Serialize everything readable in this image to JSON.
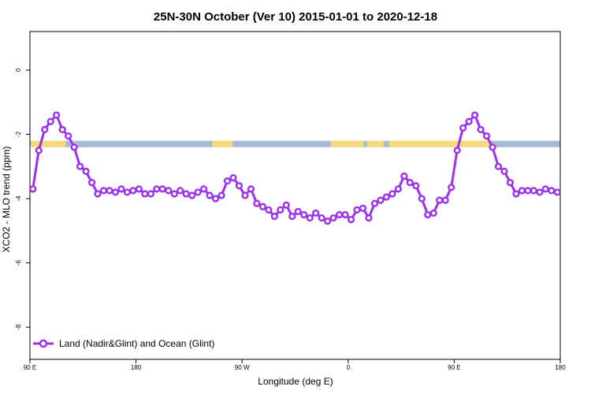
{
  "chart_data": {
    "type": "line",
    "title": "25N-30N October (Ver 10)   2015-01-01 to 2020-12-18",
    "xlabel": "Longitude (deg E)",
    "ylabel": "XCO2 - MLO trend (ppm)",
    "xlim": [
      90,
      540
    ],
    "ylim": [
      -9,
      1.2
    ],
    "x_ticks": [
      {
        "value": 90,
        "label": "90 E"
      },
      {
        "value": 180,
        "label": "180"
      },
      {
        "value": 270,
        "label": "90 W"
      },
      {
        "value": 360,
        "label": "0"
      },
      {
        "value": 450,
        "label": "90 E"
      },
      {
        "value": 540,
        "label": "180"
      }
    ],
    "y_ticks": [
      {
        "value": 0,
        "label": "0"
      },
      {
        "value": -2,
        "label": "-2"
      },
      {
        "value": -4,
        "label": "-4"
      },
      {
        "value": -6,
        "label": "-6"
      },
      {
        "value": -8,
        "label": "-8"
      }
    ],
    "grid": false,
    "legend_position": "bottom-left",
    "band": {
      "y_range": [
        -2.4,
        -2.2
      ],
      "land_color": "#f5d97a",
      "ocean_color": "#a4bcd8",
      "segments": [
        {
          "from": 90,
          "to": 120,
          "kind": "land"
        },
        {
          "from": 120,
          "to": 245,
          "kind": "ocean"
        },
        {
          "from": 245,
          "to": 262,
          "kind": "land"
        },
        {
          "from": 262,
          "to": 345,
          "kind": "ocean"
        },
        {
          "from": 345,
          "to": 373,
          "kind": "land"
        },
        {
          "from": 373,
          "to": 376,
          "kind": "ocean"
        },
        {
          "from": 376,
          "to": 390,
          "kind": "land"
        },
        {
          "from": 390,
          "to": 395,
          "kind": "ocean"
        },
        {
          "from": 395,
          "to": 480,
          "kind": "land"
        },
        {
          "from": 480,
          "to": 540,
          "kind": "ocean"
        }
      ]
    },
    "series": [
      {
        "name": "Land (Nadir&Glint) and Ocean (Glint)",
        "color": "#9b30f0",
        "x": [
          92.5,
          97.5,
          102.5,
          107.5,
          112.5,
          117.5,
          122.5,
          127.5,
          132.5,
          137.5,
          142.5,
          147.5,
          152.5,
          157.5,
          162.5,
          167.5,
          172.5,
          177.5,
          182.5,
          187.5,
          192.5,
          197.5,
          202.5,
          207.5,
          212.5,
          217.5,
          222.5,
          227.5,
          232.5,
          237.5,
          242.5,
          247.5,
          252.5,
          257.5,
          262.5,
          267.5,
          272.5,
          277.5,
          282.5,
          287.5,
          292.5,
          297.5,
          302.5,
          307.5,
          312.5,
          317.5,
          322.5,
          327.5,
          332.5,
          337.5,
          342.5,
          347.5,
          352.5,
          357.5,
          362.5,
          367.5,
          372.5,
          377.5,
          382.5,
          387.5,
          392.5,
          397.5,
          402.5,
          407.5,
          412.5,
          417.5,
          422.5,
          427.5,
          432.5,
          437.5,
          442.5,
          447.5,
          452.5,
          457.5,
          462.5,
          467.5,
          472.5,
          477.5,
          482.5,
          487.5,
          492.5,
          497.5,
          502.5,
          507.5,
          512.5,
          517.5,
          522.5,
          527.5,
          532.5,
          537.5
        ],
        "y": [
          -3.7,
          -2.5,
          -1.85,
          -1.6,
          -1.4,
          -1.85,
          -2.05,
          -2.4,
          -3.0,
          -3.15,
          -3.5,
          -3.85,
          -3.75,
          -3.75,
          -3.8,
          -3.7,
          -3.8,
          -3.75,
          -3.7,
          -3.85,
          -3.85,
          -3.7,
          -3.7,
          -3.75,
          -3.85,
          -3.75,
          -3.85,
          -3.9,
          -3.8,
          -3.7,
          -3.9,
          -4.0,
          -3.9,
          -3.45,
          -3.35,
          -3.6,
          -3.9,
          -3.7,
          -4.15,
          -4.25,
          -4.35,
          -4.55,
          -4.35,
          -4.2,
          -4.55,
          -4.4,
          -4.5,
          -4.6,
          -4.45,
          -4.6,
          -4.7,
          -4.6,
          -4.5,
          -4.5,
          -4.65,
          -4.35,
          -4.3,
          -4.6,
          -4.15,
          -4.05,
          -3.95,
          -3.85,
          -3.7,
          -3.3,
          -3.5,
          -3.6,
          -4.0,
          -4.5,
          -4.45,
          -4.05,
          -4.05,
          -3.65,
          -2.5,
          -1.8,
          -1.6,
          -1.4,
          -1.85,
          -2.05,
          -2.4,
          -3.0,
          -3.15,
          -3.5,
          -3.85,
          -3.75,
          -3.75,
          -3.75,
          -3.8,
          -3.7,
          -3.75,
          -3.8
        ]
      }
    ]
  }
}
